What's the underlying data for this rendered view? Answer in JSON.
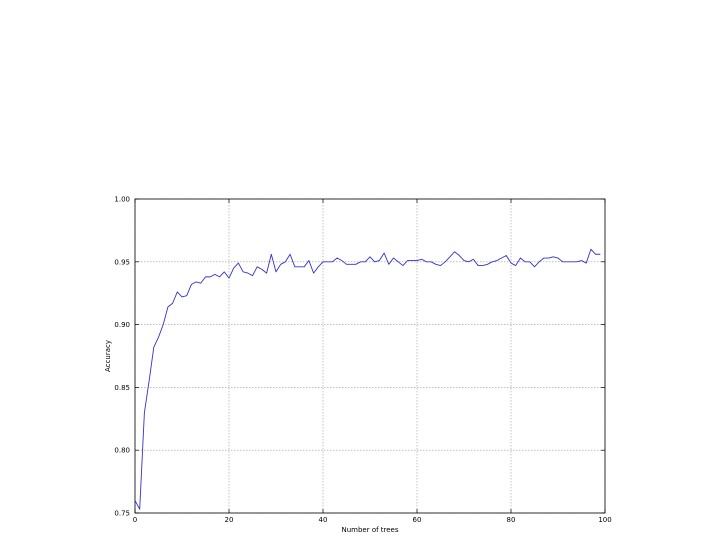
{
  "chart_data": {
    "type": "line",
    "title": "",
    "xlabel": "Number of trees",
    "ylabel": "Accuracy",
    "xlim": [
      0,
      100
    ],
    "ylim": [
      0.75,
      1.0
    ],
    "x_ticks": [
      "0",
      "20",
      "40",
      "60",
      "80",
      "100"
    ],
    "y_ticks": [
      "0.75",
      "0.80",
      "0.85",
      "0.90",
      "0.95",
      "1.00"
    ],
    "grid": true,
    "line_color": "#3333cc",
    "series": [
      {
        "values": [
          0.76,
          0.753,
          0.83,
          0.855,
          0.882,
          0.89,
          0.9,
          0.914,
          0.917,
          0.926,
          0.922,
          0.923,
          0.932,
          0.934,
          0.933,
          0.938,
          0.938,
          0.94,
          0.938,
          0.942,
          0.937,
          0.945,
          0.949,
          0.942,
          0.941,
          0.939,
          0.946,
          0.944,
          0.941,
          0.956,
          0.942,
          0.948,
          0.95,
          0.956,
          0.946,
          0.946,
          0.946,
          0.951,
          0.941,
          0.946,
          0.95,
          0.95,
          0.95,
          0.953,
          0.951,
          0.948,
          0.948,
          0.948,
          0.95,
          0.95,
          0.954,
          0.95,
          0.951,
          0.957,
          0.948,
          0.953,
          0.95,
          0.947,
          0.951,
          0.951,
          0.951,
          0.952,
          0.95,
          0.95,
          0.948,
          0.947,
          0.95,
          0.954,
          0.958,
          0.955,
          0.951,
          0.95,
          0.952,
          0.947,
          0.947,
          0.948,
          0.95,
          0.951,
          0.953,
          0.955,
          0.949,
          0.947,
          0.953,
          0.95,
          0.95,
          0.946,
          0.95,
          0.953,
          0.953,
          0.954,
          0.953,
          0.95,
          0.95,
          0.95,
          0.95,
          0.951,
          0.949,
          0.96,
          0.956,
          0.956
        ]
      }
    ]
  }
}
